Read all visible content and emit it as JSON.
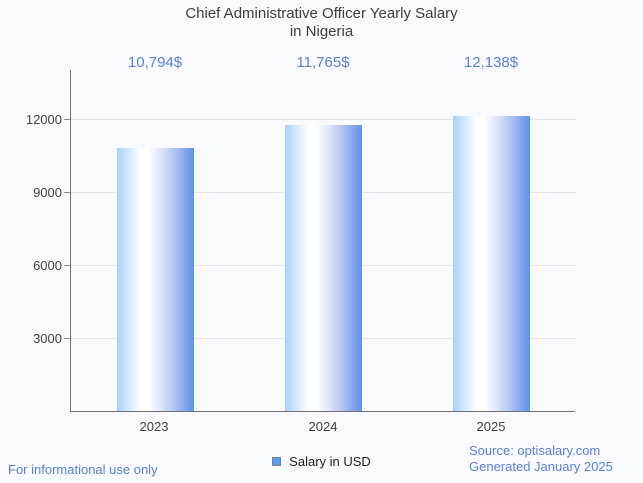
{
  "title": {
    "line1": "Chief Administrative Officer Yearly Salary",
    "line2": "in Nigeria"
  },
  "chart_data": {
    "type": "bar",
    "title": "Chief Administrative Officer Yearly Salary in Nigeria",
    "categories": [
      "2023",
      "2024",
      "2025"
    ],
    "series": [
      {
        "name": "Salary in USD",
        "values": [
          10794,
          11765,
          12138
        ]
      }
    ],
    "values": [
      10794,
      11765,
      12138
    ],
    "value_labels": [
      "10,794$",
      "11,765$",
      "12,138$"
    ],
    "xlabel": "",
    "ylabel": "",
    "y_ticks": [
      3000,
      6000,
      9000,
      12000
    ],
    "y_tick_labels": [
      "3000",
      "6000",
      "9000",
      "12000"
    ],
    "ylim": [
      0,
      14000
    ],
    "grid": true,
    "legend_position": "bottom"
  },
  "legend": {
    "label": "Salary in USD",
    "swatch_color": "#55a0f2"
  },
  "footer": {
    "left": "For informational use only",
    "source": "Source: optisalary.com",
    "generated": "Generated January 2025"
  },
  "colors": {
    "background": "#f9fafd",
    "accent_text_blue": "#5b7fd6",
    "bar_gradient_left": "#a9d2f8",
    "bar_gradient_mid": "#ffffff",
    "bar_gradient_right": "#6090e8",
    "axis_line": "#71717b",
    "gridline": "#e6e6ea",
    "tick_text": "#424242",
    "title_text": "#3d3d3d"
  }
}
